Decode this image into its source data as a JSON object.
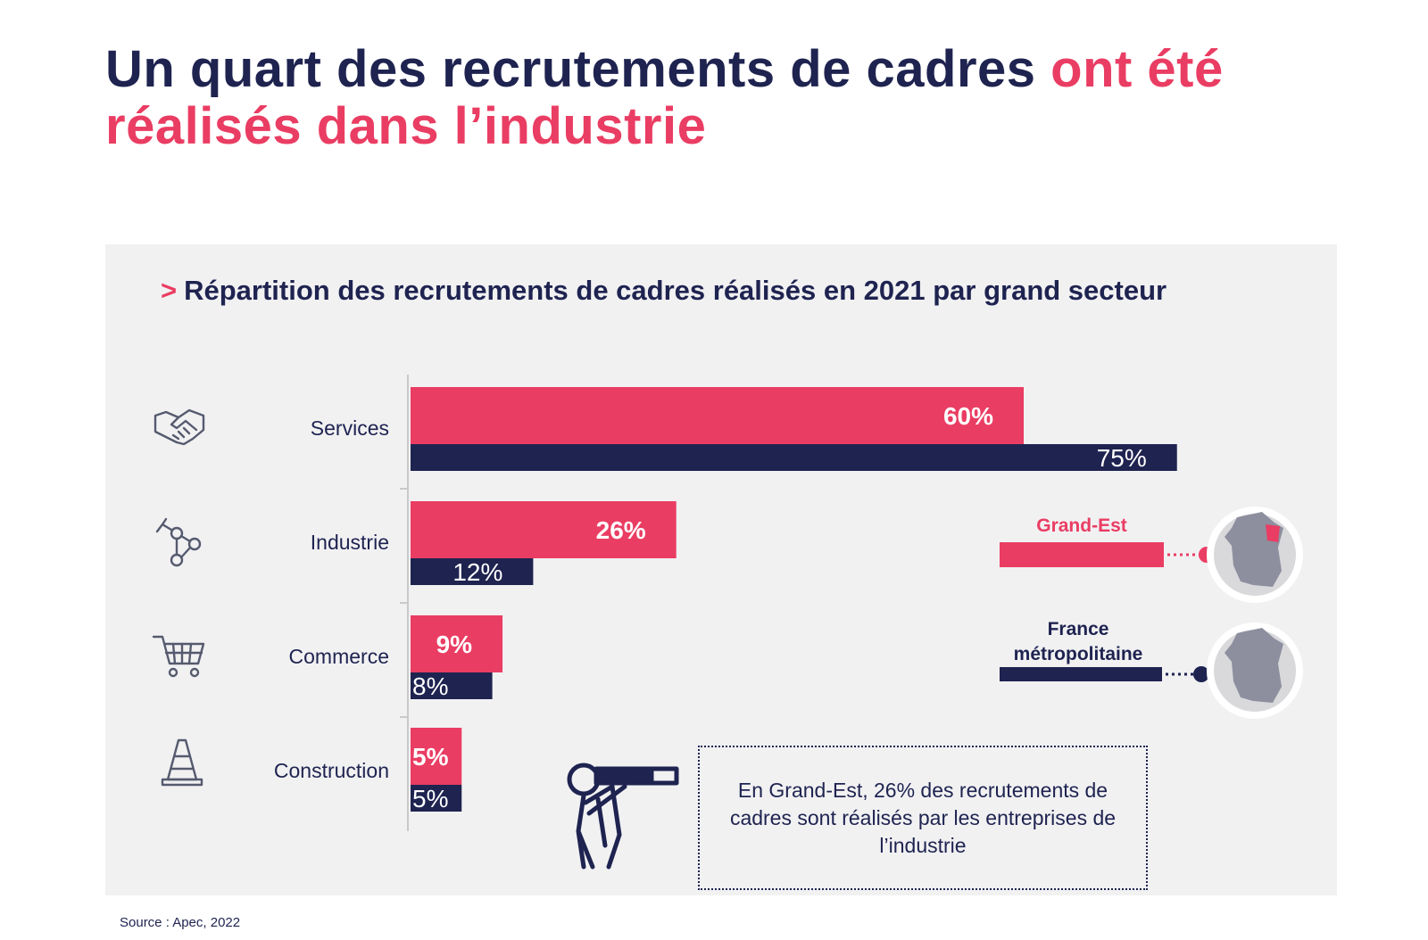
{
  "title": {
    "part1": "Un quart des recrutements de cadres ",
    "part2": "ont été réalisés dans l’industrie"
  },
  "colors": {
    "dark": "#1e2350",
    "accent": "#ea3d63",
    "panel": "#f1f1f2"
  },
  "chart_data": {
    "type": "bar",
    "orientation": "horizontal",
    "title": "Répartition des recrutements de cadres réalisés en 2021 par grand secteur",
    "title_prefix": ">",
    "categories": [
      "Services",
      "Industrie",
      "Commerce",
      "Construction"
    ],
    "category_icons": [
      "handshake-icon",
      "robot-arm-icon",
      "shopping-cart-icon",
      "traffic-cone-icon"
    ],
    "series": [
      {
        "name": "Grand-Est",
        "values": [
          60,
          26,
          9,
          5
        ],
        "labels": [
          "60%",
          "26%",
          "9%",
          "5%"
        ],
        "color": "#ea3d63"
      },
      {
        "name": "France métropolitaine",
        "values": [
          75,
          12,
          8,
          5
        ],
        "labels": [
          "75%",
          "12%",
          "8%",
          "5%"
        ],
        "color": "#1e2350"
      }
    ],
    "xlim": [
      0,
      100
    ],
    "legend": [
      "Grand-Est",
      "France",
      "métropolitaine"
    ],
    "legend_placement": "right"
  },
  "note": "En Grand-Est, 26% des recrutements de cadres sont réalisés par les entreprises de l’industrie",
  "source": "Source : Apec, 2022"
}
